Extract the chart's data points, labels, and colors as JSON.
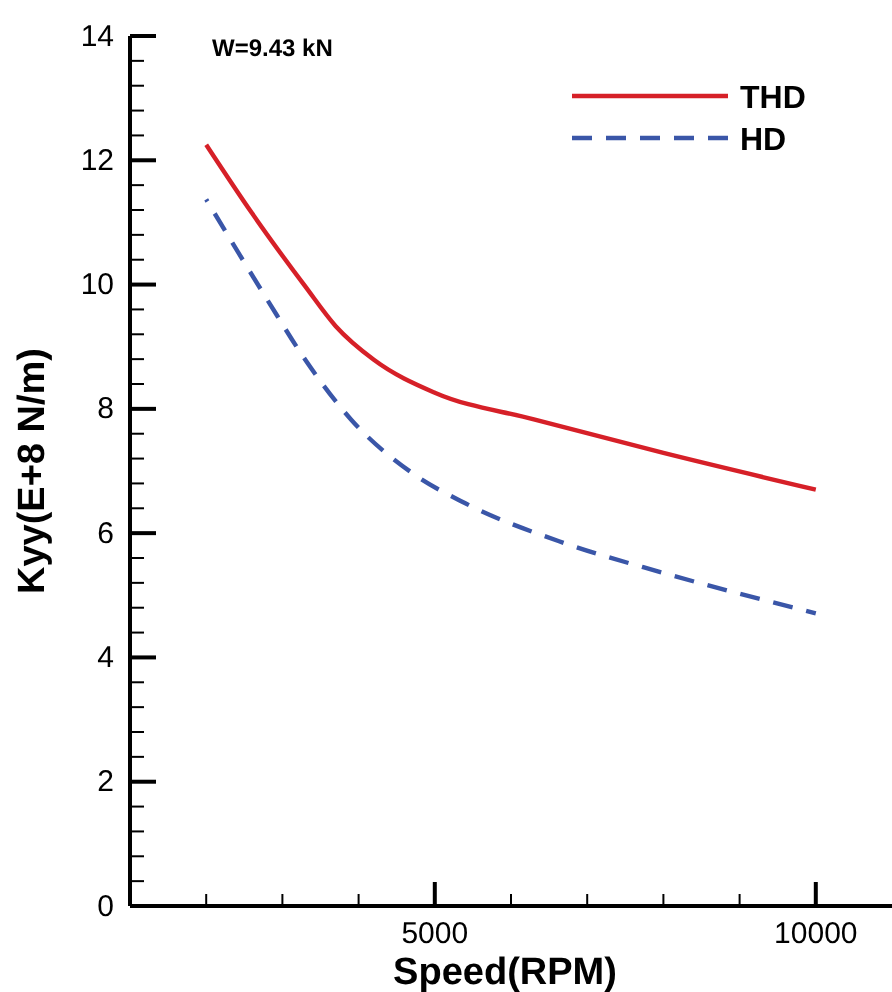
{
  "chart_data": {
    "type": "line",
    "xlabel": "Speed(RPM)",
    "ylabel": "Kyy(E+8 N/m)",
    "annotations": [
      "W=9.43 kN"
    ],
    "xlim": [
      1000,
      11000
    ],
    "ylim": [
      0,
      14
    ],
    "xticks": [
      {
        "value": 2000,
        "label": null
      },
      {
        "value": 3000,
        "label": null
      },
      {
        "value": 4000,
        "label": null
      },
      5000,
      {
        "value": 6000,
        "label": null
      },
      {
        "value": 7000,
        "label": null
      },
      {
        "value": 8000,
        "label": null
      },
      {
        "value": 9000,
        "label": null
      },
      10000
    ],
    "yticks": [
      0,
      {
        "value": 0.4,
        "label": null
      },
      {
        "value": 0.8,
        "label": null
      },
      {
        "value": 1.2,
        "label": null
      },
      {
        "value": 1.6,
        "label": null
      },
      2,
      {
        "value": 2.4,
        "label": null
      },
      {
        "value": 2.8,
        "label": null
      },
      {
        "value": 3.2,
        "label": null
      },
      {
        "value": 3.6,
        "label": null
      },
      4,
      {
        "value": 4.4,
        "label": null
      },
      {
        "value": 4.8,
        "label": null
      },
      {
        "value": 5.2,
        "label": null
      },
      {
        "value": 5.6,
        "label": null
      },
      6,
      {
        "value": 6.4,
        "label": null
      },
      {
        "value": 6.8,
        "label": null
      },
      {
        "value": 7.2,
        "label": null
      },
      {
        "value": 7.6,
        "label": null
      },
      8,
      {
        "value": 8.4,
        "label": null
      },
      {
        "value": 8.8,
        "label": null
      },
      {
        "value": 9.2,
        "label": null
      },
      {
        "value": 9.6,
        "label": null
      },
      10,
      {
        "value": 10.4,
        "label": null
      },
      {
        "value": 10.8,
        "label": null
      },
      {
        "value": 11.2,
        "label": null
      },
      {
        "value": 11.6,
        "label": null
      },
      12,
      {
        "value": 12.4,
        "label": null
      },
      {
        "value": 12.8,
        "label": null
      },
      {
        "value": 13.2,
        "label": null
      },
      {
        "value": 13.6,
        "label": null
      },
      14
    ],
    "grid": false,
    "legend": "top right",
    "series": [
      {
        "name": "THD",
        "color": "#d62028",
        "line_style": "solid",
        "x": [
          2000,
          2600,
          3300,
          3700,
          4200,
          5000,
          6300,
          8000,
          10000
        ],
        "values": [
          12.25,
          11.15,
          9.97,
          9.33,
          8.79,
          8.26,
          7.83,
          7.29,
          6.7
        ]
      },
      {
        "name": "HD",
        "color": "#3a56a8",
        "line_style": "dashed",
        "x": [
          2000,
          2800,
          3300,
          3900,
          4700,
          5400,
          6700,
          8000,
          10000
        ],
        "values": [
          11.37,
          9.76,
          8.79,
          7.83,
          6.97,
          6.48,
          5.84,
          5.36,
          4.71
        ]
      }
    ]
  }
}
